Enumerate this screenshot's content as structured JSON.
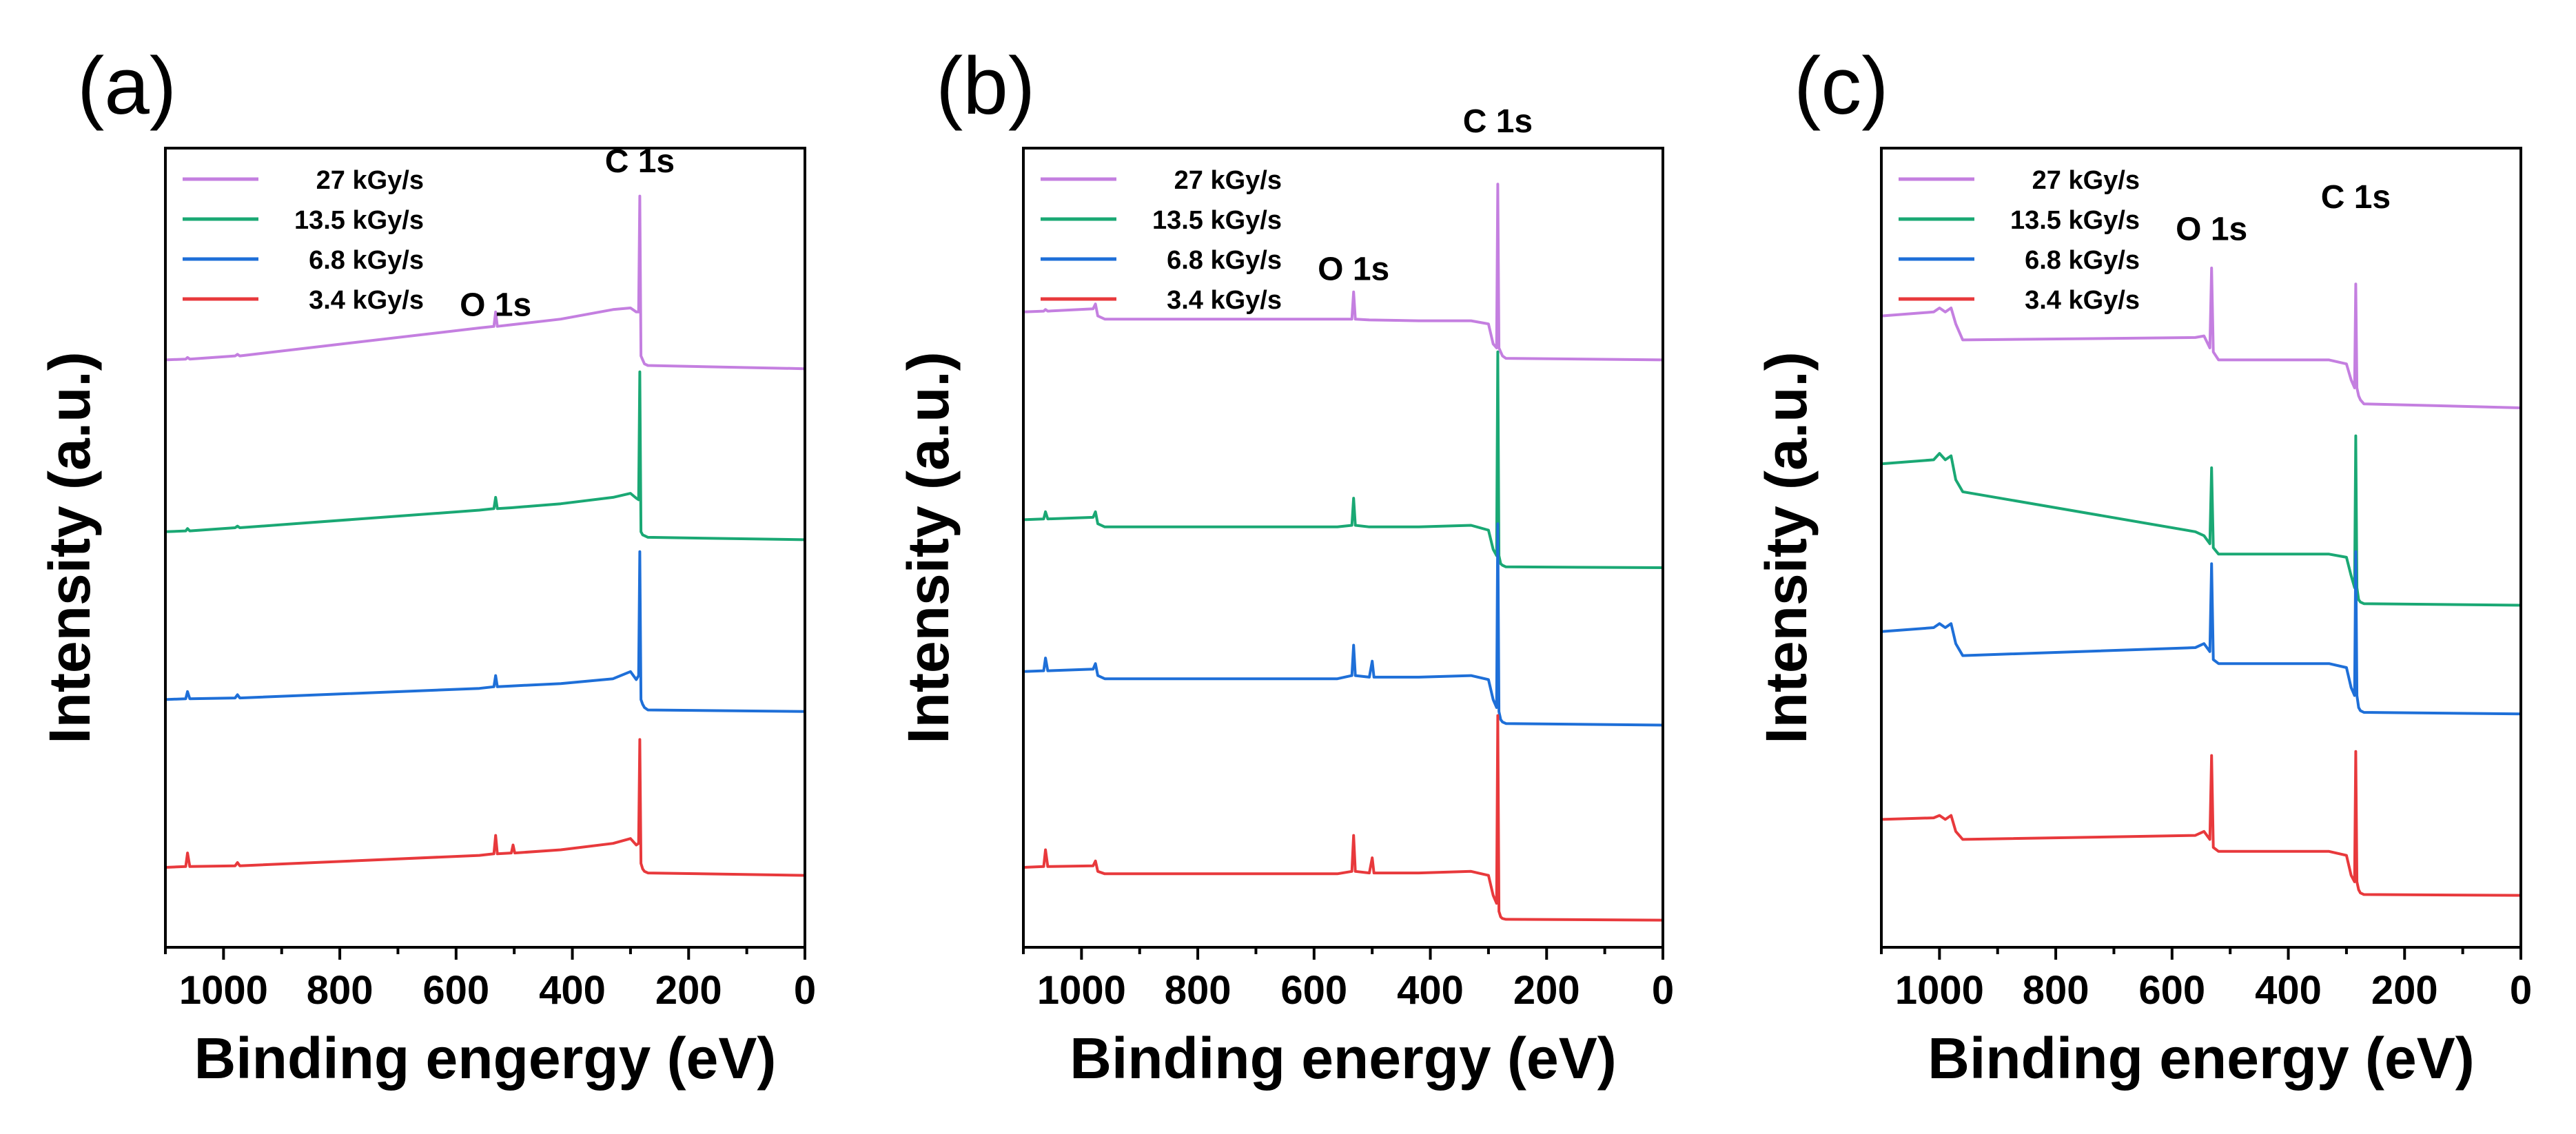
{
  "chart_data": [
    {
      "type": "line",
      "panel": "(a)",
      "xlabel": "Binding engergy (eV)",
      "ylabel": "Intensity (a.u.)",
      "xlim": [
        1100,
        0
      ],
      "ylim": [
        0,
        10
      ],
      "xticks": [
        1000,
        800,
        600,
        400,
        200,
        0
      ],
      "legend_position": "top-left",
      "annotations": [
        {
          "text": "O 1s",
          "x": 532,
          "y": 7.9
        },
        {
          "text": "C 1s",
          "x": 284,
          "y": 9.7
        }
      ],
      "series": [
        {
          "name": "27 kGy/s",
          "color": "#c47fe0",
          "x": [
            1100,
            1065,
            1062,
            1058,
            980,
            976,
            972,
            560,
            535,
            532,
            529,
            505,
            420,
            330,
            300,
            290,
            286,
            284,
            282,
            279,
            276,
            270,
            0
          ],
          "y": [
            7.35,
            7.36,
            7.38,
            7.36,
            7.4,
            7.42,
            7.4,
            7.75,
            7.77,
            7.95,
            7.77,
            7.79,
            7.86,
            7.98,
            8.0,
            7.95,
            7.95,
            9.4,
            7.4,
            7.35,
            7.3,
            7.28,
            7.24
          ]
        },
        {
          "name": "13.5 kGy/s",
          "color": "#1aa874",
          "x": [
            1100,
            1065,
            1062,
            1058,
            980,
            976,
            972,
            560,
            535,
            532,
            529,
            505,
            420,
            330,
            300,
            290,
            286,
            284,
            282,
            279,
            276,
            270,
            0
          ],
          "y": [
            5.2,
            5.21,
            5.24,
            5.21,
            5.25,
            5.27,
            5.25,
            5.47,
            5.49,
            5.63,
            5.49,
            5.5,
            5.55,
            5.63,
            5.68,
            5.62,
            5.6,
            7.2,
            5.2,
            5.16,
            5.15,
            5.13,
            5.1
          ]
        },
        {
          "name": "6.8 kGy/s",
          "color": "#1e6fd8",
          "x": [
            1100,
            1065,
            1062,
            1058,
            980,
            976,
            972,
            560,
            535,
            532,
            529,
            505,
            420,
            330,
            300,
            290,
            286,
            284,
            282,
            279,
            276,
            270,
            0
          ],
          "y": [
            3.1,
            3.11,
            3.2,
            3.11,
            3.12,
            3.16,
            3.12,
            3.24,
            3.26,
            3.4,
            3.26,
            3.27,
            3.3,
            3.36,
            3.45,
            3.35,
            3.4,
            4.95,
            3.1,
            3.04,
            3.0,
            2.97,
            2.95
          ]
        },
        {
          "name": "3.4 kGy/s",
          "color": "#e8393c",
          "x": [
            1100,
            1065,
            1062,
            1058,
            980,
            976,
            972,
            560,
            535,
            532,
            529,
            505,
            502,
            499,
            420,
            330,
            300,
            290,
            286,
            284,
            282,
            279,
            276,
            270,
            0
          ],
          "y": [
            1.0,
            1.01,
            1.18,
            1.01,
            1.02,
            1.06,
            1.02,
            1.15,
            1.17,
            1.4,
            1.17,
            1.18,
            1.28,
            1.18,
            1.22,
            1.3,
            1.36,
            1.28,
            1.3,
            2.6,
            1.05,
            0.98,
            0.95,
            0.93,
            0.9
          ]
        }
      ]
    },
    {
      "type": "line",
      "panel": "(b)",
      "xlabel": "Binding energy (eV)",
      "ylabel": "Intensity (a.u.)",
      "xlim": [
        1100,
        0
      ],
      "ylim": [
        0,
        10
      ],
      "xticks": [
        1000,
        800,
        600,
        400,
        200,
        0
      ],
      "legend_position": "top-left",
      "annotations": [
        {
          "text": "O 1s",
          "x": 532,
          "y": 8.35
        },
        {
          "text": "C 1s",
          "x": 284,
          "y": 10.2
        }
      ],
      "series": [
        {
          "name": "27 kGy/s",
          "color": "#c47fe0",
          "x": [
            1100,
            1065,
            1062,
            1058,
            980,
            976,
            972,
            960,
            560,
            535,
            532,
            529,
            505,
            420,
            330,
            300,
            292,
            286,
            284,
            282,
            279,
            276,
            270,
            0
          ],
          "y": [
            7.95,
            7.96,
            7.98,
            7.96,
            7.99,
            8.05,
            7.9,
            7.86,
            7.86,
            7.86,
            8.2,
            7.86,
            7.85,
            7.84,
            7.84,
            7.8,
            7.55,
            7.5,
            9.55,
            7.5,
            7.45,
            7.4,
            7.37,
            7.35
          ]
        },
        {
          "name": "13.5 kGy/s",
          "color": "#1aa874",
          "x": [
            1100,
            1065,
            1062,
            1058,
            980,
            976,
            972,
            960,
            560,
            535,
            532,
            529,
            505,
            420,
            330,
            300,
            292,
            286,
            284,
            282,
            279,
            276,
            270,
            0
          ],
          "y": [
            5.35,
            5.36,
            5.45,
            5.36,
            5.38,
            5.45,
            5.3,
            5.26,
            5.26,
            5.28,
            5.62,
            5.28,
            5.26,
            5.26,
            5.28,
            5.22,
            4.98,
            4.9,
            7.45,
            4.9,
            4.8,
            4.78,
            4.76,
            4.75
          ]
        },
        {
          "name": "6.8 kGy/s",
          "color": "#1e6fd8",
          "x": [
            1100,
            1065,
            1062,
            1058,
            980,
            976,
            972,
            960,
            560,
            535,
            532,
            529,
            505,
            500,
            497,
            420,
            330,
            300,
            292,
            286,
            284,
            282,
            279,
            276,
            270,
            0
          ],
          "y": [
            3.45,
            3.46,
            3.62,
            3.46,
            3.48,
            3.55,
            3.4,
            3.36,
            3.36,
            3.4,
            3.78,
            3.4,
            3.38,
            3.58,
            3.38,
            3.38,
            3.4,
            3.35,
            3.1,
            3.0,
            5.3,
            2.95,
            2.85,
            2.82,
            2.8,
            2.78
          ]
        },
        {
          "name": "3.4 kGy/s",
          "color": "#e8393c",
          "x": [
            1100,
            1065,
            1062,
            1058,
            980,
            976,
            972,
            960,
            560,
            535,
            532,
            529,
            505,
            500,
            497,
            420,
            330,
            300,
            292,
            286,
            284,
            282,
            279,
            276,
            270,
            0
          ],
          "y": [
            1.0,
            1.01,
            1.22,
            1.01,
            1.02,
            1.08,
            0.95,
            0.92,
            0.92,
            0.95,
            1.4,
            0.95,
            0.93,
            1.12,
            0.93,
            0.93,
            0.95,
            0.9,
            0.65,
            0.55,
            2.9,
            0.45,
            0.38,
            0.36,
            0.35,
            0.34
          ]
        }
      ]
    },
    {
      "type": "line",
      "panel": "(c)",
      "xlabel": "Binding energy (eV)",
      "ylabel": "Intensity (a.u.)",
      "xlim": [
        1100,
        0
      ],
      "ylim": [
        0,
        10
      ],
      "xticks": [
        1000,
        800,
        600,
        400,
        200,
        0
      ],
      "legend_position": "top-left",
      "annotations": [
        {
          "text": "O 1s",
          "x": 532,
          "y": 8.85
        },
        {
          "text": "C 1s",
          "x": 284,
          "y": 9.25
        }
      ],
      "series": [
        {
          "name": "27 kGy/s",
          "color": "#c47fe0",
          "x": [
            1100,
            1010,
            1000,
            990,
            980,
            972,
            960,
            560,
            545,
            535,
            532,
            529,
            520,
            420,
            330,
            300,
            292,
            286,
            284,
            282,
            279,
            276,
            270,
            0
          ],
          "y": [
            7.9,
            7.95,
            8.0,
            7.95,
            8.0,
            7.8,
            7.6,
            7.63,
            7.65,
            7.5,
            8.5,
            7.45,
            7.35,
            7.35,
            7.35,
            7.3,
            7.1,
            7.0,
            8.3,
            7.0,
            6.9,
            6.85,
            6.8,
            6.75
          ]
        },
        {
          "name": "13.5 kGy/s",
          "color": "#1aa874",
          "x": [
            1100,
            1010,
            1000,
            990,
            980,
            972,
            960,
            560,
            545,
            535,
            532,
            529,
            520,
            420,
            330,
            300,
            292,
            286,
            284,
            282,
            279,
            276,
            270,
            0
          ],
          "y": [
            6.05,
            6.1,
            6.18,
            6.1,
            6.15,
            5.85,
            5.7,
            5.2,
            5.15,
            5.05,
            6.0,
            5.0,
            4.92,
            4.92,
            4.92,
            4.88,
            4.65,
            4.5,
            6.4,
            4.5,
            4.35,
            4.32,
            4.3,
            4.28
          ]
        },
        {
          "name": "6.8 kGy/s",
          "color": "#1e6fd8",
          "x": [
            1100,
            1010,
            1000,
            990,
            980,
            972,
            960,
            560,
            545,
            535,
            532,
            529,
            520,
            420,
            330,
            300,
            292,
            286,
            284,
            282,
            279,
            276,
            270,
            0
          ],
          "y": [
            3.95,
            4.0,
            4.05,
            4.0,
            4.05,
            3.8,
            3.65,
            3.75,
            3.8,
            3.7,
            4.8,
            3.6,
            3.55,
            3.55,
            3.55,
            3.5,
            3.25,
            3.15,
            4.95,
            3.15,
            3.0,
            2.96,
            2.94,
            2.92
          ]
        },
        {
          "name": "3.4 kGy/s",
          "color": "#e8393c",
          "x": [
            1100,
            1010,
            1000,
            990,
            980,
            972,
            960,
            560,
            545,
            535,
            532,
            529,
            520,
            420,
            330,
            300,
            292,
            286,
            284,
            282,
            279,
            276,
            270,
            0
          ],
          "y": [
            1.6,
            1.62,
            1.65,
            1.6,
            1.65,
            1.45,
            1.35,
            1.4,
            1.45,
            1.35,
            2.4,
            1.25,
            1.2,
            1.2,
            1.2,
            1.15,
            0.9,
            0.82,
            2.45,
            0.82,
            0.72,
            0.68,
            0.66,
            0.65
          ]
        }
      ]
    }
  ]
}
